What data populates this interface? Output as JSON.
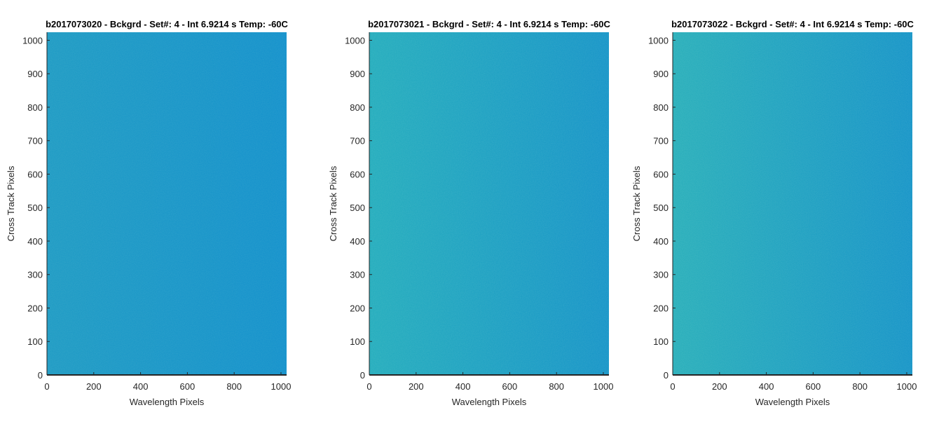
{
  "chart_data": [
    {
      "type": "heatmap",
      "title": "b2017073020 - Bckgrd - Set#: 4 - Int 6.9214 s Temp: -60C",
      "xlabel": "Wavelength Pixels",
      "ylabel": "Cross Track Pixels",
      "xlim": [
        0,
        1024
      ],
      "ylim": [
        0,
        1024
      ],
      "xticks": [
        0,
        200,
        400,
        600,
        800,
        1000
      ],
      "yticks": [
        0,
        100,
        200,
        300,
        400,
        500,
        600,
        700,
        800,
        900,
        1000
      ],
      "grid": false,
      "colors": {
        "left": "#1a99c4",
        "right": "#0f8fcc",
        "noise": 0.5
      }
    },
    {
      "type": "heatmap",
      "title": "b2017073021 - Bckgrd - Set#: 4 - Int 6.9214 s Temp: -60C",
      "xlabel": "Wavelength Pixels",
      "ylabel": "Cross Track Pixels",
      "xlim": [
        0,
        1024
      ],
      "ylim": [
        0,
        1024
      ],
      "xticks": [
        0,
        200,
        400,
        600,
        800,
        1000
      ],
      "yticks": [
        0,
        100,
        200,
        300,
        400,
        500,
        600,
        700,
        800,
        900,
        1000
      ],
      "grid": false,
      "colors": {
        "left": "#1fabbd",
        "right": "#1192c8",
        "noise": 0.6
      }
    },
    {
      "type": "heatmap",
      "title": "b2017073022 - Bckgrd - Set#: 4 - Int 6.9214 s Temp: -60C",
      "xlabel": "Wavelength Pixels",
      "ylabel": "Cross Track Pixels",
      "xlim": [
        0,
        1024
      ],
      "ylim": [
        0,
        1024
      ],
      "xticks": [
        0,
        200,
        400,
        600,
        800,
        1000
      ],
      "yticks": [
        0,
        100,
        200,
        300,
        400,
        500,
        600,
        700,
        800,
        900,
        1000
      ],
      "grid": false,
      "colors": {
        "left": "#24adba",
        "right": "#1192c8",
        "noise": 0.6
      }
    }
  ]
}
